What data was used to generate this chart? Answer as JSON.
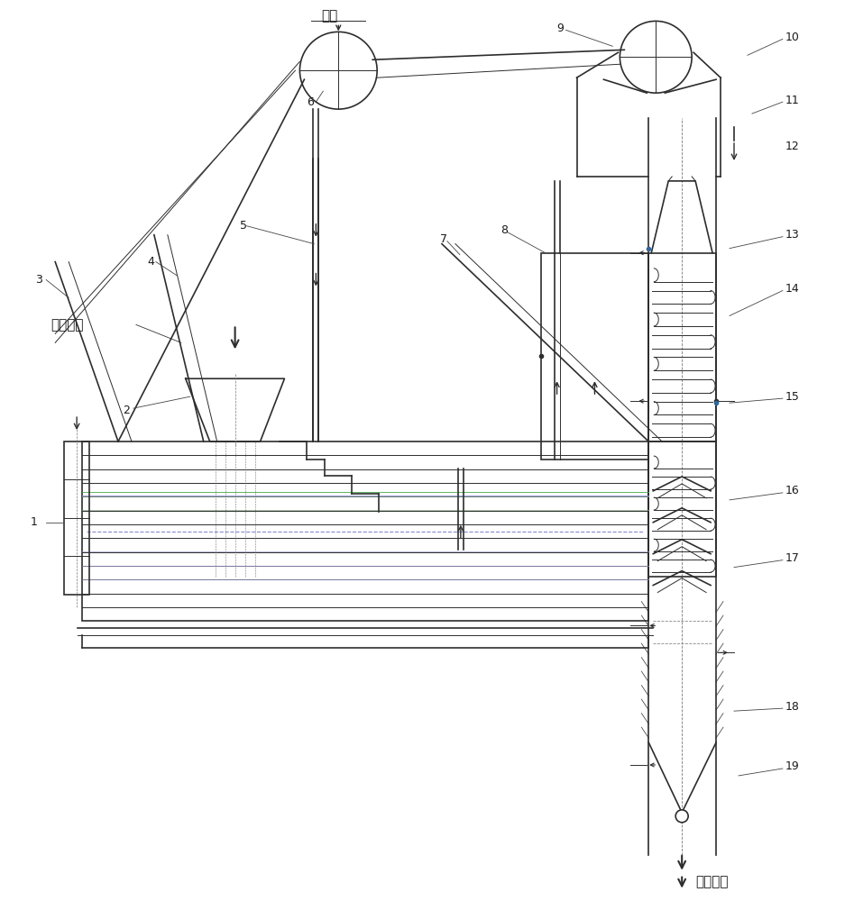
{
  "bg_color": "#ffffff",
  "line_color": "#2d2d2d",
  "label_color": "#1a1a1a",
  "figsize": [
    9.47,
    10.0
  ],
  "dpi": 100,
  "labels": {
    "material_inlet": "物料进口",
    "material_outlet": "物料出口",
    "water_inlet": "进水"
  },
  "numbers": [
    "1",
    "2",
    "3",
    "4",
    "5",
    "6",
    "7",
    "8",
    "9",
    "10",
    "11",
    "12",
    "13",
    "14",
    "15",
    "16",
    "17",
    "18",
    "19"
  ]
}
